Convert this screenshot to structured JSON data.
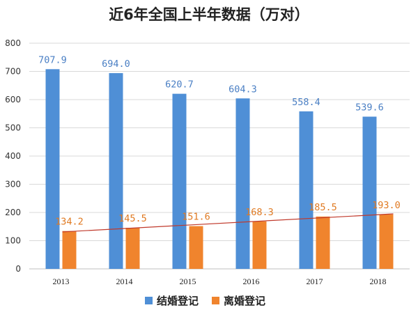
{
  "chart_data": {
    "type": "bar",
    "title": "近6年全国上半年数据（万对）",
    "categories": [
      "2013",
      "2014",
      "2015",
      "2016",
      "2017",
      "2018"
    ],
    "ylim": [
      0,
      800
    ],
    "yticks": [
      0,
      100,
      200,
      300,
      400,
      500,
      600,
      700,
      800
    ],
    "grid": true,
    "legend_position": "bottom",
    "series": [
      {
        "name": "结婚登记",
        "color": "#4f8fd6",
        "label_color": "#4a7fc4",
        "values": [
          707.9,
          694.0,
          620.7,
          604.3,
          558.4,
          539.6
        ],
        "labels": [
          "707.9",
          "694.0",
          "620.7",
          "604.3",
          "558.4",
          "539.6"
        ]
      },
      {
        "name": "离婚登记",
        "color": "#f0842d",
        "label_color": "#e07a22",
        "values": [
          134.2,
          145.5,
          151.6,
          168.3,
          185.5,
          193.0
        ],
        "labels": [
          "134.2",
          "145.5",
          "151.6",
          "168.3",
          "185.5",
          "193.0"
        ]
      }
    ],
    "trendline": {
      "series": "离婚登记",
      "color": "#c0392b"
    }
  }
}
